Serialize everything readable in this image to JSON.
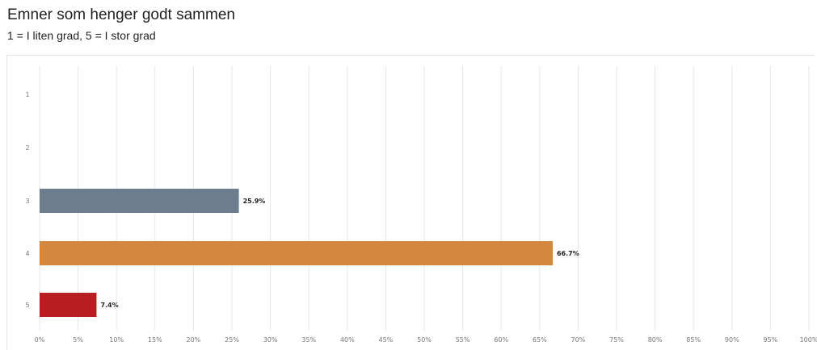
{
  "title": "Emner som henger godt sammen",
  "subtitle": "1 = I liten grad, 5 = I stor grad",
  "chart_data": {
    "type": "bar",
    "orientation": "horizontal",
    "categories": [
      "1",
      "2",
      "3",
      "4",
      "5"
    ],
    "values": [
      0,
      0,
      25.9,
      66.7,
      7.4
    ],
    "data_labels": [
      "",
      "",
      "25.9%",
      "66.7%",
      "7.4%"
    ],
    "colors": [
      "#6e7d8e",
      "#6e7d8e",
      "#6e7d8e",
      "#d4873f",
      "#b81e21"
    ],
    "xlim": [
      0,
      100
    ],
    "x_tick_labels": [
      "0%",
      "5%",
      "10%",
      "15%",
      "20%",
      "25%",
      "30%",
      "35%",
      "40%",
      "45%",
      "50%",
      "55%",
      "60%",
      "65%",
      "70%",
      "75%",
      "80%",
      "85%",
      "90%",
      "95%",
      "100%"
    ],
    "grid": true,
    "legend": "none"
  }
}
